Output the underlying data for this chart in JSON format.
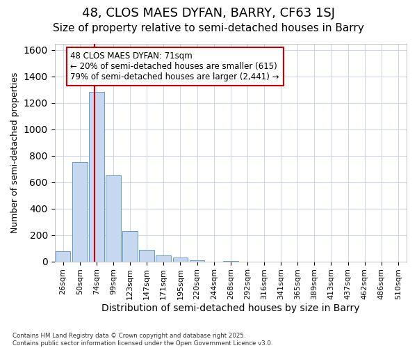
{
  "title1": "48, CLOS MAES DYFAN, BARRY, CF63 1SJ",
  "title2": "Size of property relative to semi-detached houses in Barry",
  "xlabel": "Distribution of semi-detached houses by size in Barry",
  "ylabel": "Number of semi-detached properties",
  "categories": [
    "26sqm",
    "50sqm",
    "74sqm",
    "99sqm",
    "123sqm",
    "147sqm",
    "171sqm",
    "195sqm",
    "220sqm",
    "244sqm",
    "268sqm",
    "292sqm",
    "316sqm",
    "341sqm",
    "365sqm",
    "389sqm",
    "413sqm",
    "437sqm",
    "462sqm",
    "486sqm",
    "510sqm"
  ],
  "values": [
    75,
    750,
    1285,
    650,
    230,
    85,
    45,
    30,
    10,
    0,
    5,
    0,
    0,
    0,
    0,
    0,
    0,
    0,
    0,
    0,
    0
  ],
  "bar_color": "#c5d8f0",
  "bar_edge_color": "#6699cc",
  "property_line_color": "#cc0000",
  "annotation_text": "48 CLOS MAES DYFAN: 71sqm\n← 20% of semi-detached houses are smaller (615)\n79% of semi-detached houses are larger (2,441) →",
  "annotation_box_edgecolor": "#cc0000",
  "footer": "Contains HM Land Registry data © Crown copyright and database right 2025.\nContains public sector information licensed under the Open Government Licence v3.0.",
  "ylim": [
    0,
    1650
  ],
  "background_color": "#ffffff",
  "grid_color": "#d0d8e8",
  "title_fontsize": 13,
  "subtitle_fontsize": 11,
  "tick_fontsize": 8,
  "ylabel_fontsize": 9,
  "xlabel_fontsize": 10
}
